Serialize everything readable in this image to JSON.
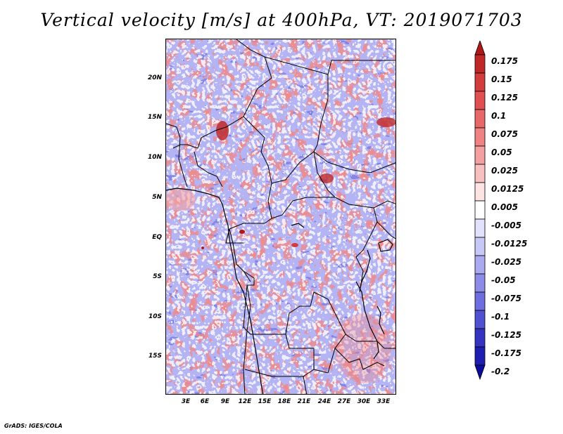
{
  "title": "Vertical velocity [m/s] at 400hPa, VT: 2019071703",
  "credit": "GrADS: IGES/COLA",
  "map": {
    "lat_labels": [
      "20N",
      "15N",
      "10N",
      "5N",
      "EQ",
      "5S",
      "10S",
      "15S"
    ],
    "lon_labels": [
      "3E",
      "6E",
      "9E",
      "12E",
      "15E",
      "18E",
      "21E",
      "24E",
      "27E",
      "30E",
      "33E"
    ],
    "extent": {
      "lon_min": 0,
      "lon_max": 35,
      "lat_min": -20,
      "lat_max": 25
    }
  },
  "colorbar": {
    "labels": [
      "0.175",
      "0.15",
      "0.125",
      "0.1",
      "0.075",
      "0.05",
      "0.025",
      "0.0125",
      "0.005",
      "-0.005",
      "-0.0125",
      "-0.025",
      "-0.05",
      "-0.075",
      "-0.1",
      "-0.125",
      "-0.175",
      "-0.2"
    ],
    "colors": [
      "#b01818",
      "#c02828",
      "#d23c3c",
      "#e05050",
      "#e86868",
      "#f08282",
      "#f4a0a0",
      "#f8c0c0",
      "#fce4e4",
      "#ffffff",
      "#e2e2fc",
      "#c8c8f6",
      "#aaaaf0",
      "#8c8ce8",
      "#6e6ee0",
      "#5050d2",
      "#3434c0",
      "#1e1eb0",
      "#0c0c9c"
    ]
  }
}
